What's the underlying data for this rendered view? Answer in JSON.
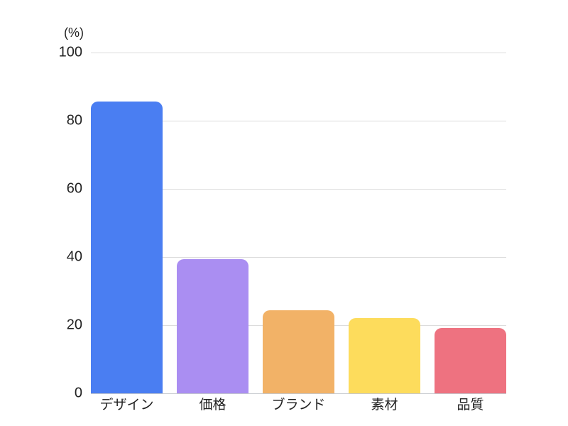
{
  "chart_data": {
    "type": "bar",
    "title": "",
    "unit_label": "(%)",
    "categories": [
      "デザイン",
      "価格",
      "ブランド",
      "素材",
      "品質"
    ],
    "values": [
      85.7,
      39.4,
      24.3,
      22.0,
      19.1
    ],
    "colors": [
      "#4a7ef2",
      "#aa8ef2",
      "#f2b267",
      "#fddc5c",
      "#ee7280"
    ],
    "ylim": [
      0,
      100
    ],
    "yticks": [
      0,
      20,
      40,
      60,
      80,
      100
    ],
    "ytick_labels": [
      "0",
      "20",
      "40",
      "60",
      "80",
      "100"
    ],
    "grid": true,
    "legend_position": "none",
    "background_color": "#ffffff",
    "gridline_color": "#dcdcdc",
    "baseline_color": "#c6c9ce",
    "text_color": "#222222"
  }
}
